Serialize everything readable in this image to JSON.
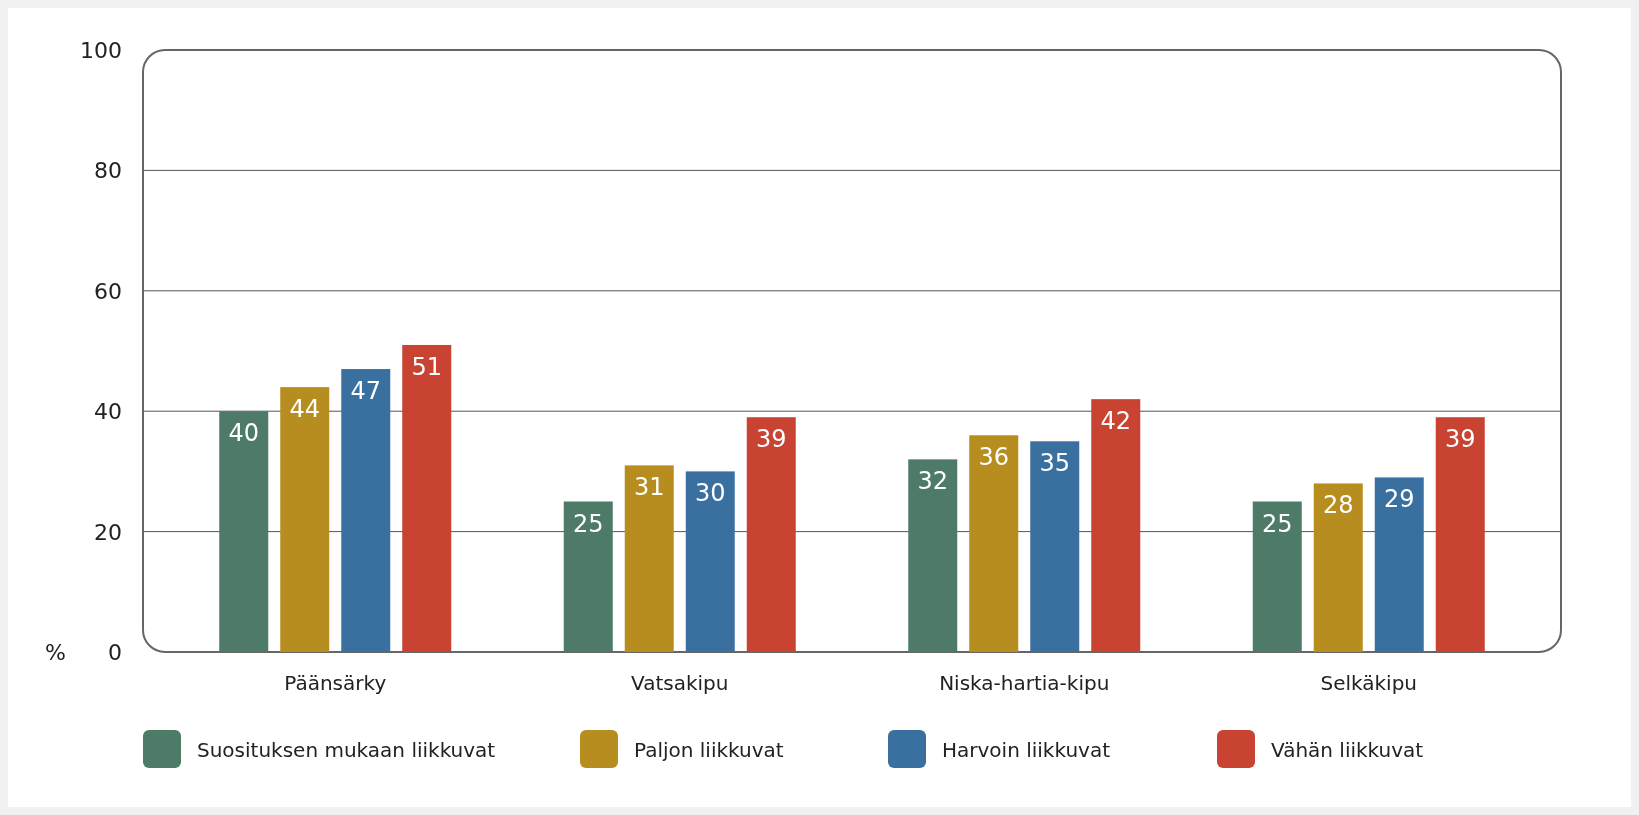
{
  "chart_data": {
    "type": "bar",
    "ylabel": "%",
    "categories": [
      "Päänsärky",
      "Vatsakipu",
      "Niska-hartia-kipu",
      "Selkäkipu"
    ],
    "series": [
      {
        "name": "Suosituksen mukaan liikkuvat",
        "color": "#4e7b68",
        "values": [
          40,
          25,
          32,
          25
        ]
      },
      {
        "name": "Paljon liikkuvat",
        "color": "#b68d1e",
        "values": [
          44,
          31,
          36,
          28
        ]
      },
      {
        "name": "Harvoin liikkuvat",
        "color": "#3a70a0",
        "values": [
          47,
          30,
          35,
          29
        ]
      },
      {
        "name": "Vähän liikkuvat",
        "color": "#c84332",
        "values": [
          51,
          39,
          42,
          39
        ]
      }
    ],
    "ylim": [
      0,
      100
    ],
    "yticks": [
      0,
      20,
      40,
      60,
      80,
      100
    ],
    "grid": "y",
    "legend": "bottom",
    "data_labels": true
  }
}
